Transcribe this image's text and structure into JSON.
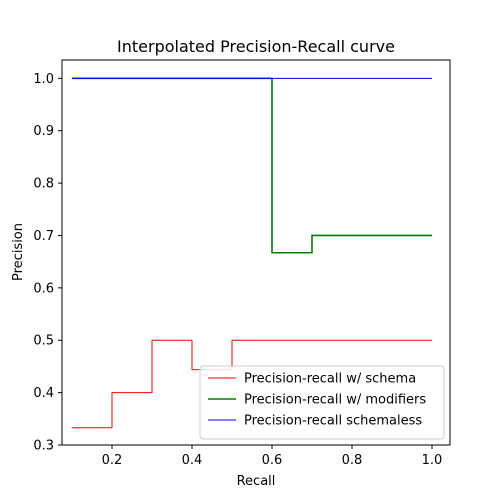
{
  "chart_data": {
    "type": "line",
    "title": "Interpolated Precision-Recall curve",
    "xlabel": "Recall",
    "ylabel": "Precision",
    "xlim": [
      0.075,
      1.045
    ],
    "ylim": [
      0.3,
      1.035
    ],
    "x_ticks": [
      0.2,
      0.4,
      0.6,
      0.8,
      1.0
    ],
    "x_tick_labels": [
      "0.2",
      "0.4",
      "0.6",
      "0.8",
      "1.0"
    ],
    "y_ticks": [
      0.3,
      0.4,
      0.5,
      0.6,
      0.7,
      0.8,
      0.9,
      1.0
    ],
    "y_tick_labels": [
      "0.3",
      "0.4",
      "0.5",
      "0.6",
      "0.7",
      "0.8",
      "0.9",
      "1.0"
    ],
    "grid": false,
    "legend_position": "lower-right",
    "series": [
      {
        "name": "Precision-recall w/ schema",
        "color": "#ff0000",
        "step": "pre",
        "x": [
          0.1,
          0.2,
          0.3,
          0.4,
          0.5,
          0.6,
          0.7,
          0.8,
          0.9,
          1.0
        ],
        "y": [
          0.333,
          0.333,
          0.4,
          0.5,
          0.444,
          0.5,
          0.5,
          0.5,
          0.5,
          0.5
        ]
      },
      {
        "name": "Precision-recall w/ modifiers",
        "color": "#008000",
        "step": "pre",
        "x": [
          0.1,
          0.2,
          0.3,
          0.4,
          0.5,
          0.6,
          0.7,
          0.8,
          0.9,
          1.0
        ],
        "y": [
          1.0,
          1.0,
          1.0,
          1.0,
          1.0,
          1.0,
          0.667,
          0.7,
          0.7,
          0.7
        ]
      },
      {
        "name": "Precision-recall schemaless",
        "color": "#0000ff",
        "step": "pre",
        "x": [
          0.1,
          0.2,
          0.3,
          0.4,
          0.5,
          0.6,
          0.7,
          0.8,
          0.9,
          1.0
        ],
        "y": [
          1.0,
          1.0,
          1.0,
          1.0,
          1.0,
          1.0,
          1.0,
          1.0,
          1.0,
          1.0
        ]
      }
    ]
  }
}
